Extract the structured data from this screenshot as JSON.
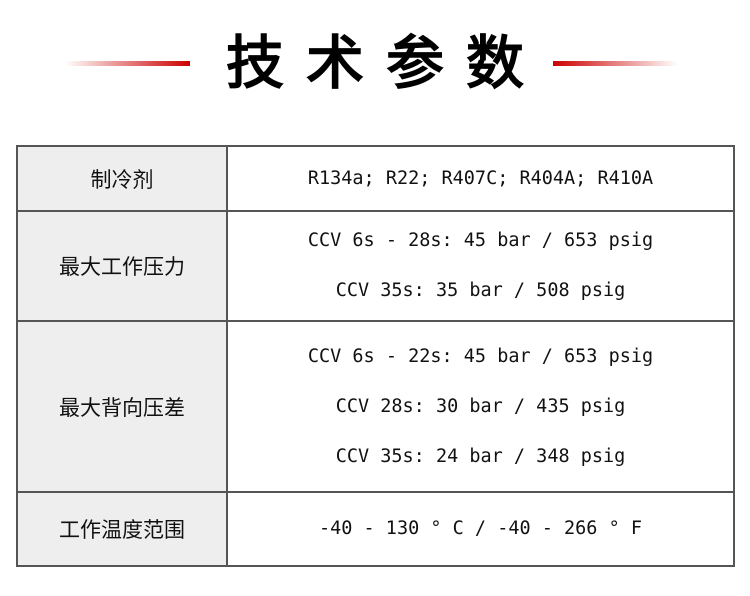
{
  "title": "技术参数",
  "accent_color": "#cc0000",
  "rows": [
    {
      "label": "制冷剂",
      "values": [
        "R134a; R22; R407C; R404A; R410A"
      ]
    },
    {
      "label": "最大工作压力",
      "values": [
        "CCV 6s - 28s: 45 bar / 653 psig",
        "CCV 35s: 35 bar / 508 psig"
      ]
    },
    {
      "label": "最大背向压差",
      "values": [
        "CCV 6s - 22s: 45 bar / 653 psig",
        "CCV 28s: 30 bar / 435 psig",
        "CCV 35s: 24 bar / 348 psig"
      ]
    },
    {
      "label": "工作温度范围",
      "values": [
        "-40 - 130 ° C / -40 - 266 ° F"
      ]
    }
  ]
}
